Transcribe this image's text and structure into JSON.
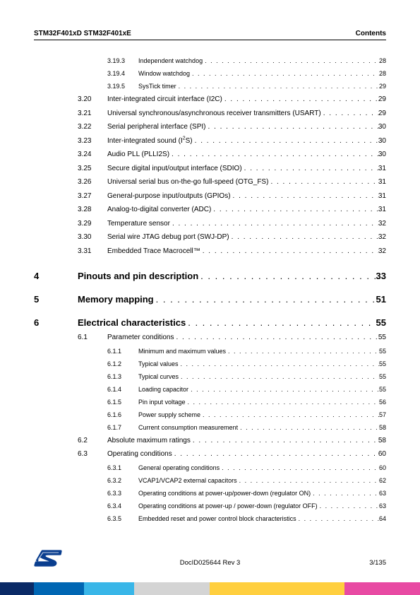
{
  "header": {
    "left": "STM32F401xD STM32F401xE",
    "right": "Contents"
  },
  "footer": {
    "docid": "DocID025644 Rev 3",
    "page": "3/135"
  },
  "bar_colors": [
    "#0a2a66",
    "#0066b3",
    "#39b6e8",
    "#d4d4d4",
    "#ffcf3f",
    "#e84aa3"
  ],
  "bar_widths": [
    "8%",
    "12%",
    "12%",
    "18%",
    "32%",
    "18%"
  ],
  "toc": [
    {
      "type": "sub",
      "num": "3.19.3",
      "title": "Independent watchdog",
      "page": "28"
    },
    {
      "type": "sub",
      "num": "3.19.4",
      "title": "Window watchdog",
      "page": "28"
    },
    {
      "type": "sub",
      "num": "3.19.5",
      "title": "SysTick timer",
      "page": "29"
    },
    {
      "type": "section",
      "num": "3.20",
      "title": "Inter-integrated circuit interface (I2C)",
      "page": "29"
    },
    {
      "type": "section",
      "num": "3.21",
      "title": "Universal synchronous/asynchronous receiver transmitters (USART)",
      "page": "29"
    },
    {
      "type": "section",
      "num": "3.22",
      "title": "Serial peripheral interface (SPI)",
      "page": "30"
    },
    {
      "type": "section",
      "num": "3.23",
      "title": "Inter-integrated sound (I²S)",
      "page": "30",
      "sup": "2",
      "title_pre": "Inter-integrated sound (I",
      "title_post": "S)"
    },
    {
      "type": "section",
      "num": "3.24",
      "title": "Audio PLL (PLLI2S)",
      "page": "30"
    },
    {
      "type": "section",
      "num": "3.25",
      "title": "Secure digital input/output interface (SDIO)",
      "page": "31"
    },
    {
      "type": "section",
      "num": "3.26",
      "title": "Universal serial bus on-the-go full-speed (OTG_FS)",
      "page": "31"
    },
    {
      "type": "section",
      "num": "3.27",
      "title": "General-purpose input/outputs (GPIOs)",
      "page": "31"
    },
    {
      "type": "section",
      "num": "3.28",
      "title": "Analog-to-digital converter (ADC)",
      "page": "31"
    },
    {
      "type": "section",
      "num": "3.29",
      "title": "Temperature sensor",
      "page": "32"
    },
    {
      "type": "section",
      "num": "3.30",
      "title": "Serial wire JTAG debug port (SWJ-DP)",
      "page": "32"
    },
    {
      "type": "section",
      "num": "3.31",
      "title": "Embedded Trace Macrocell™",
      "page": "32"
    },
    {
      "type": "chapter",
      "num": "4",
      "title": "Pinouts and pin description",
      "page": "33"
    },
    {
      "type": "chapter",
      "num": "5",
      "title": "Memory mapping",
      "page": "51"
    },
    {
      "type": "chapter",
      "num": "6",
      "title": "Electrical characteristics",
      "page": "55"
    },
    {
      "type": "section",
      "num": "6.1",
      "title": "Parameter conditions",
      "page": "55"
    },
    {
      "type": "sub",
      "num": "6.1.1",
      "title": "Minimum and maximum values",
      "page": "55"
    },
    {
      "type": "sub",
      "num": "6.1.2",
      "title": "Typical values",
      "page": "55"
    },
    {
      "type": "sub",
      "num": "6.1.3",
      "title": "Typical curves",
      "page": "55"
    },
    {
      "type": "sub",
      "num": "6.1.4",
      "title": "Loading capacitor",
      "page": "55"
    },
    {
      "type": "sub",
      "num": "6.1.5",
      "title": "Pin input voltage",
      "page": "56"
    },
    {
      "type": "sub",
      "num": "6.1.6",
      "title": "Power supply scheme",
      "page": "57"
    },
    {
      "type": "sub",
      "num": "6.1.7",
      "title": "Current consumption measurement",
      "page": "58"
    },
    {
      "type": "section",
      "num": "6.2",
      "title": "Absolute maximum ratings",
      "page": "58"
    },
    {
      "type": "section",
      "num": "6.3",
      "title": "Operating conditions",
      "page": "60"
    },
    {
      "type": "sub",
      "num": "6.3.1",
      "title": "General operating conditions",
      "page": "60"
    },
    {
      "type": "sub",
      "num": "6.3.2",
      "title": "VCAP1/VCAP2 external capacitors",
      "page": "62"
    },
    {
      "type": "sub",
      "num": "6.3.3",
      "title": "Operating conditions at power-up/power-down (regulator ON)",
      "page": "63"
    },
    {
      "type": "sub",
      "num": "6.3.4",
      "title": "Operating conditions at power-up / power-down (regulator OFF)",
      "page": "63"
    },
    {
      "type": "sub",
      "num": "6.3.5",
      "title": "Embedded reset and power control block characteristics",
      "page": "64"
    }
  ]
}
